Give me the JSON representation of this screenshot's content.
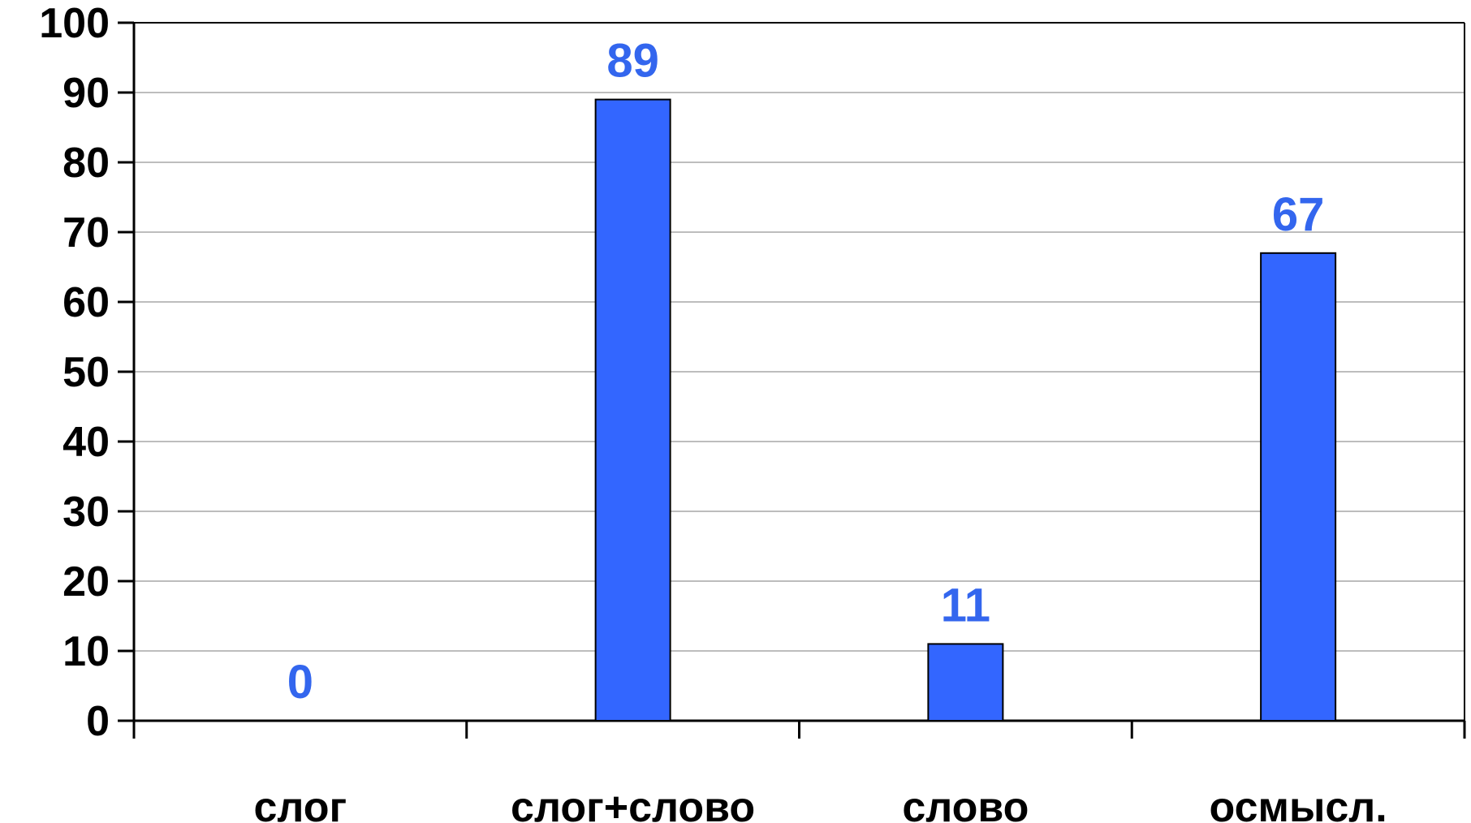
{
  "chart_data": {
    "type": "bar",
    "categories": [
      "слог",
      "слог+слово",
      "слово",
      "осмысл."
    ],
    "values": [
      0,
      89,
      11,
      67
    ],
    "ylim": [
      0,
      100
    ],
    "yticks": [
      "0",
      "10",
      "20",
      "30",
      "40",
      "50",
      "60",
      "70",
      "80",
      "90",
      "100"
    ],
    "data_labels": [
      "0",
      "89",
      "11",
      "67"
    ],
    "grid": true,
    "bar_color": "#3366ff",
    "label_color": "#3366ee",
    "title": "",
    "xlabel": "",
    "ylabel": ""
  }
}
